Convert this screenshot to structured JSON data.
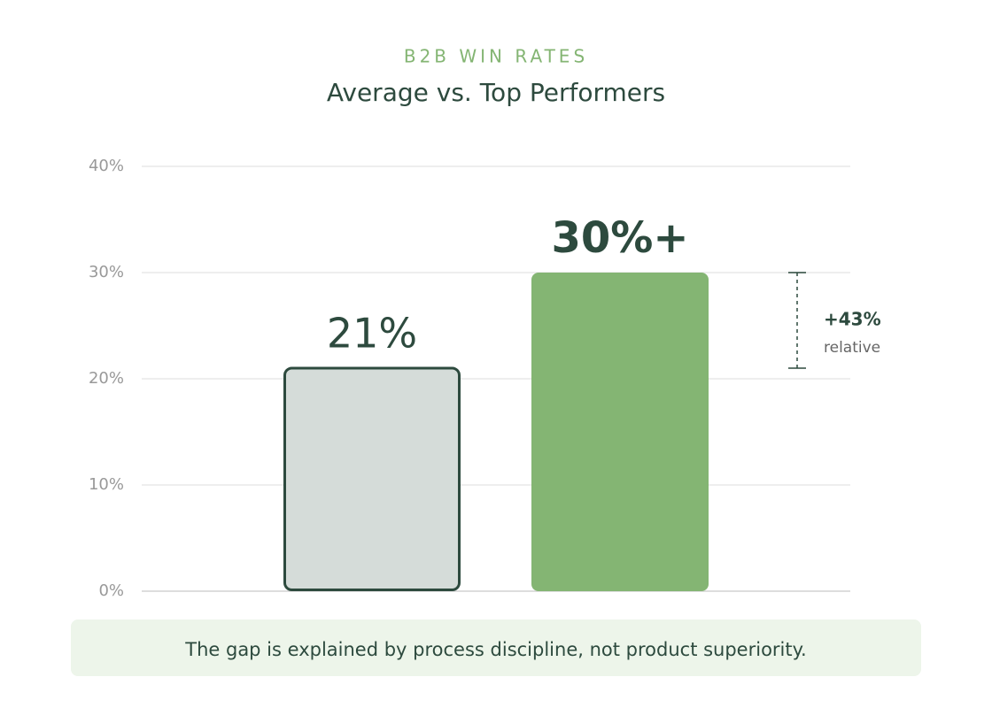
{
  "chart_data": {
    "type": "bar",
    "subtitle": "B2B WIN RATES",
    "title": "Average vs. Top Performers",
    "categories": [
      null,
      null
    ],
    "values": [
      21,
      30
    ],
    "value_labels": [
      "21%",
      "30%+"
    ],
    "colors": [
      "#d5dcd9",
      "#84b573"
    ],
    "ylim": [
      0,
      40
    ],
    "yticks": [
      {
        "value": 0,
        "label": "0%"
      },
      {
        "value": 10,
        "label": "10%"
      },
      {
        "value": 20,
        "label": "20%"
      },
      {
        "value": 30,
        "label": "30%"
      },
      {
        "value": 40,
        "label": "40%"
      }
    ],
    "grid": true,
    "annotation": {
      "label": "+43%",
      "note": "relative"
    },
    "footnote": "The gap is explained by process discipline, not product superiority."
  }
}
